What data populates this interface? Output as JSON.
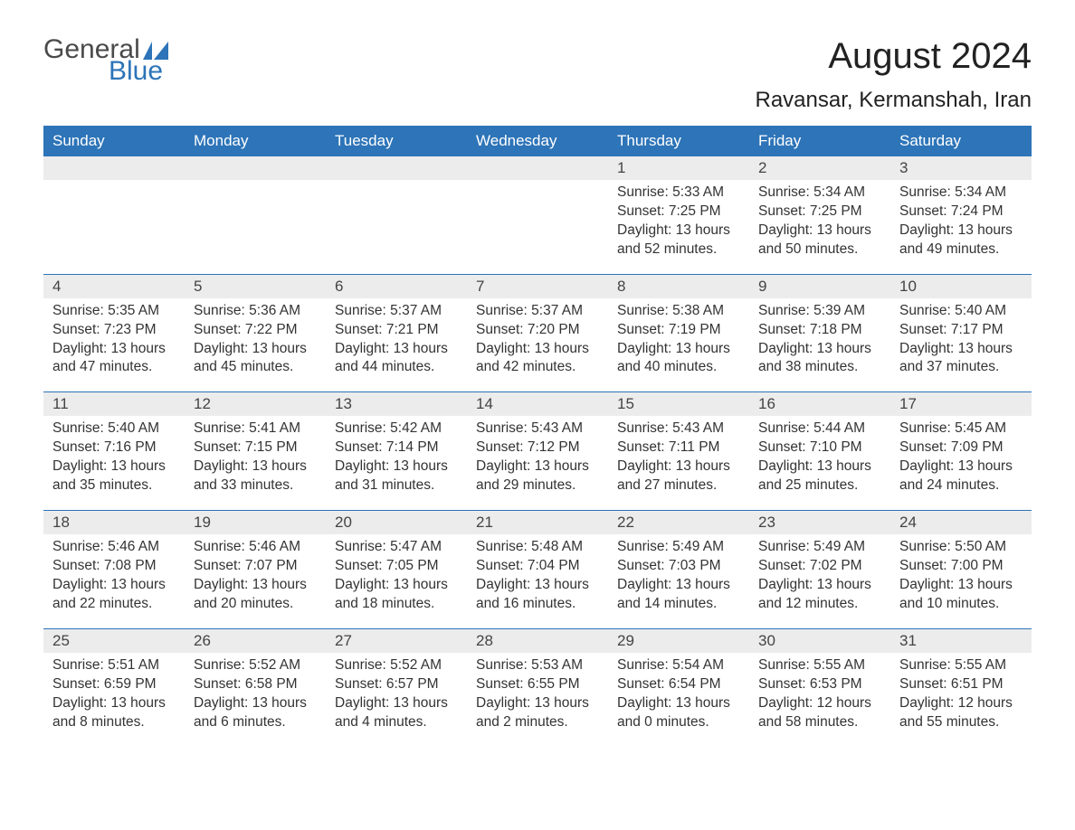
{
  "logo": {
    "word1": "General",
    "word2": "Blue",
    "flag_color": "#2d74b8"
  },
  "title": "August 2024",
  "location": "Ravansar, Kermanshah, Iran",
  "colors": {
    "header_bg": "#2d74b8",
    "header_text": "#ffffff",
    "band_bg": "#ececec",
    "border": "#2d74b8",
    "body_text": "#333333",
    "page_bg": "#ffffff"
  },
  "typography": {
    "title_fontsize": 40,
    "location_fontsize": 24,
    "weekday_fontsize": 17,
    "daynum_fontsize": 17,
    "body_fontsize": 15.5
  },
  "weekdays": [
    "Sunday",
    "Monday",
    "Tuesday",
    "Wednesday",
    "Thursday",
    "Friday",
    "Saturday"
  ],
  "weeks": [
    [
      null,
      null,
      null,
      null,
      {
        "n": "1",
        "sr": "5:33 AM",
        "ss": "7:25 PM",
        "dl": "13 hours and 52 minutes."
      },
      {
        "n": "2",
        "sr": "5:34 AM",
        "ss": "7:25 PM",
        "dl": "13 hours and 50 minutes."
      },
      {
        "n": "3",
        "sr": "5:34 AM",
        "ss": "7:24 PM",
        "dl": "13 hours and 49 minutes."
      }
    ],
    [
      {
        "n": "4",
        "sr": "5:35 AM",
        "ss": "7:23 PM",
        "dl": "13 hours and 47 minutes."
      },
      {
        "n": "5",
        "sr": "5:36 AM",
        "ss": "7:22 PM",
        "dl": "13 hours and 45 minutes."
      },
      {
        "n": "6",
        "sr": "5:37 AM",
        "ss": "7:21 PM",
        "dl": "13 hours and 44 minutes."
      },
      {
        "n": "7",
        "sr": "5:37 AM",
        "ss": "7:20 PM",
        "dl": "13 hours and 42 minutes."
      },
      {
        "n": "8",
        "sr": "5:38 AM",
        "ss": "7:19 PM",
        "dl": "13 hours and 40 minutes."
      },
      {
        "n": "9",
        "sr": "5:39 AM",
        "ss": "7:18 PM",
        "dl": "13 hours and 38 minutes."
      },
      {
        "n": "10",
        "sr": "5:40 AM",
        "ss": "7:17 PM",
        "dl": "13 hours and 37 minutes."
      }
    ],
    [
      {
        "n": "11",
        "sr": "5:40 AM",
        "ss": "7:16 PM",
        "dl": "13 hours and 35 minutes."
      },
      {
        "n": "12",
        "sr": "5:41 AM",
        "ss": "7:15 PM",
        "dl": "13 hours and 33 minutes."
      },
      {
        "n": "13",
        "sr": "5:42 AM",
        "ss": "7:14 PM",
        "dl": "13 hours and 31 minutes."
      },
      {
        "n": "14",
        "sr": "5:43 AM",
        "ss": "7:12 PM",
        "dl": "13 hours and 29 minutes."
      },
      {
        "n": "15",
        "sr": "5:43 AM",
        "ss": "7:11 PM",
        "dl": "13 hours and 27 minutes."
      },
      {
        "n": "16",
        "sr": "5:44 AM",
        "ss": "7:10 PM",
        "dl": "13 hours and 25 minutes."
      },
      {
        "n": "17",
        "sr": "5:45 AM",
        "ss": "7:09 PM",
        "dl": "13 hours and 24 minutes."
      }
    ],
    [
      {
        "n": "18",
        "sr": "5:46 AM",
        "ss": "7:08 PM",
        "dl": "13 hours and 22 minutes."
      },
      {
        "n": "19",
        "sr": "5:46 AM",
        "ss": "7:07 PM",
        "dl": "13 hours and 20 minutes."
      },
      {
        "n": "20",
        "sr": "5:47 AM",
        "ss": "7:05 PM",
        "dl": "13 hours and 18 minutes."
      },
      {
        "n": "21",
        "sr": "5:48 AM",
        "ss": "7:04 PM",
        "dl": "13 hours and 16 minutes."
      },
      {
        "n": "22",
        "sr": "5:49 AM",
        "ss": "7:03 PM",
        "dl": "13 hours and 14 minutes."
      },
      {
        "n": "23",
        "sr": "5:49 AM",
        "ss": "7:02 PM",
        "dl": "13 hours and 12 minutes."
      },
      {
        "n": "24",
        "sr": "5:50 AM",
        "ss": "7:00 PM",
        "dl": "13 hours and 10 minutes."
      }
    ],
    [
      {
        "n": "25",
        "sr": "5:51 AM",
        "ss": "6:59 PM",
        "dl": "13 hours and 8 minutes."
      },
      {
        "n": "26",
        "sr": "5:52 AM",
        "ss": "6:58 PM",
        "dl": "13 hours and 6 minutes."
      },
      {
        "n": "27",
        "sr": "5:52 AM",
        "ss": "6:57 PM",
        "dl": "13 hours and 4 minutes."
      },
      {
        "n": "28",
        "sr": "5:53 AM",
        "ss": "6:55 PM",
        "dl": "13 hours and 2 minutes."
      },
      {
        "n": "29",
        "sr": "5:54 AM",
        "ss": "6:54 PM",
        "dl": "13 hours and 0 minutes."
      },
      {
        "n": "30",
        "sr": "5:55 AM",
        "ss": "6:53 PM",
        "dl": "12 hours and 58 minutes."
      },
      {
        "n": "31",
        "sr": "5:55 AM",
        "ss": "6:51 PM",
        "dl": "12 hours and 55 minutes."
      }
    ]
  ],
  "labels": {
    "sunrise": "Sunrise:",
    "sunset": "Sunset:",
    "daylight": "Daylight:"
  }
}
